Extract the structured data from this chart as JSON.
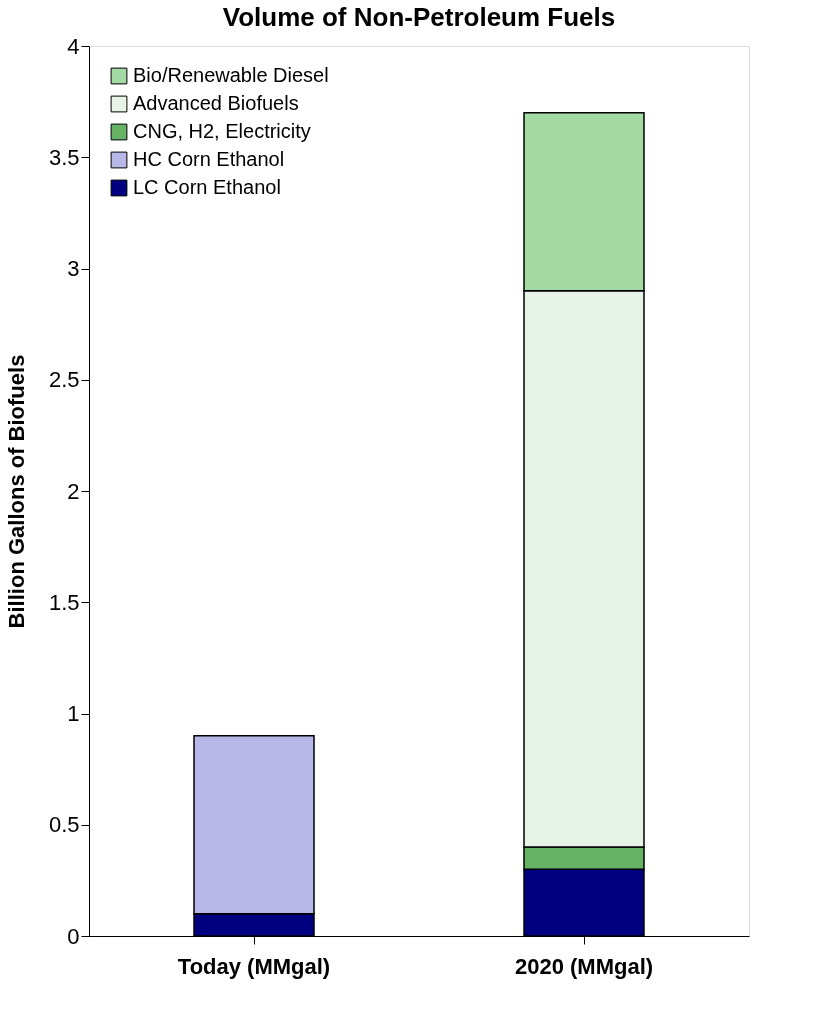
{
  "chart_data": {
    "type": "bar",
    "title": "Volume of Non-Petroleum Fuels",
    "ylabel": "Billion Gallons of Biofuels",
    "categories": [
      "Today (MMgal)",
      "2020 (MMgal)"
    ],
    "stacked": true,
    "series": [
      {
        "name": "LC Corn Ethanol",
        "color": "#000080",
        "values": [
          0.1,
          0.3
        ]
      },
      {
        "name": "HC Corn Ethanol",
        "color": "#b8b8e8",
        "values": [
          0.8,
          null
        ]
      },
      {
        "name": "CNG, H2, Electricity",
        "color": "#66b366",
        "values": [
          null,
          0.1
        ]
      },
      {
        "name": "Advanced Biofuels",
        "color": "#e6f3e6",
        "values": [
          null,
          2.5
        ]
      },
      {
        "name": "Bio/Renewable Diesel",
        "color": "#a3d9a3",
        "values": [
          null,
          0.8
        ]
      }
    ],
    "ylim": [
      0,
      4
    ],
    "yticks": [
      0,
      0.5,
      1,
      1.5,
      2,
      2.5,
      3,
      3.5,
      4
    ],
    "grid": false,
    "legend": "top left"
  }
}
